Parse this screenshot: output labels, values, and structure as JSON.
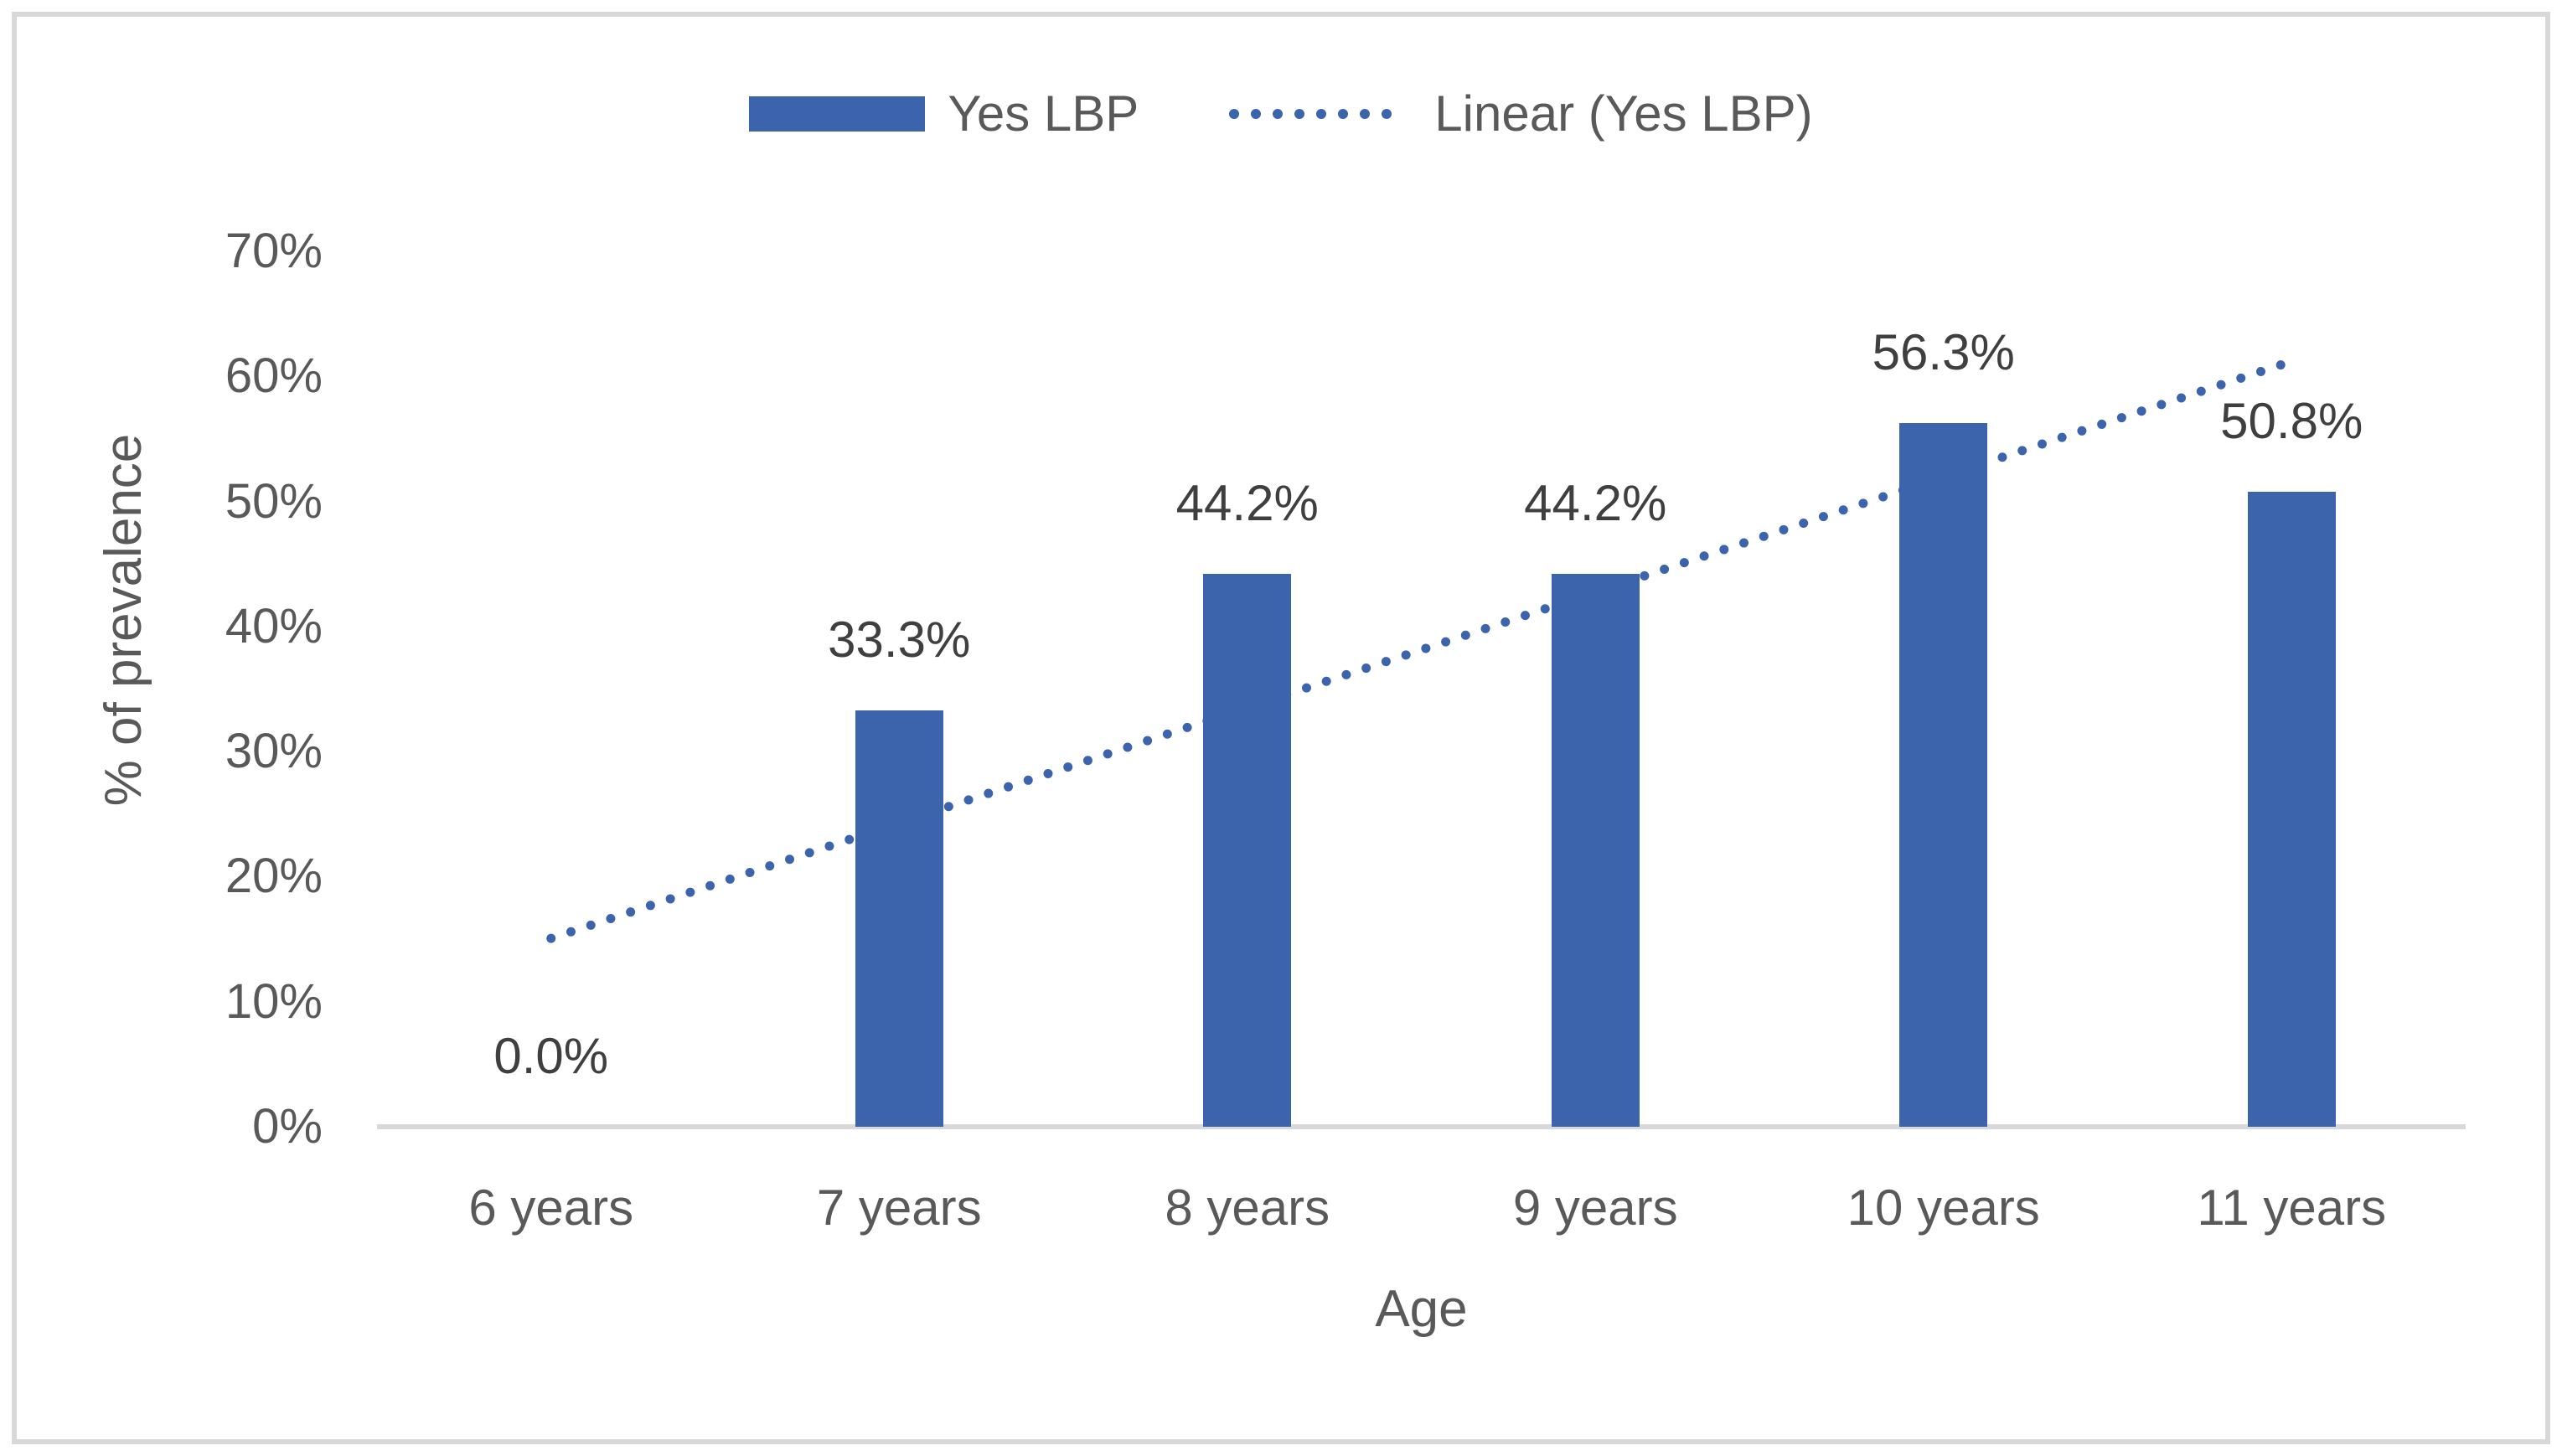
{
  "chart_data": {
    "type": "bar",
    "categories": [
      "6 years",
      "7 years",
      "8 years",
      "9 years",
      "10 years",
      "11 years"
    ],
    "series": [
      {
        "name": "Yes LBP",
        "values": [
          0,
          33.3,
          44.2,
          44.2,
          56.3,
          50.8
        ]
      }
    ],
    "data_labels": [
      "0.0%",
      "33.3%",
      "44.2%",
      "44.2%",
      "56.3%",
      "50.8%"
    ],
    "trendline": {
      "name": "Linear (Yes LBP)",
      "style": "dotted",
      "based_on": "Yes LBP"
    },
    "xlabel": "Age",
    "ylabel": "% of prevalence",
    "yticks": [
      "0%",
      "10%",
      "20%",
      "30%",
      "40%",
      "50%",
      "60%",
      "70%"
    ],
    "ylim": [
      0,
      70
    ],
    "grid": false,
    "legend_position": "top-center",
    "colors": {
      "bar": "#3C64AC",
      "trendline": "#3C64AC",
      "axis_line": "#D9D9D9",
      "tick_text": "#595959",
      "data_label_text": "#3F3F3F",
      "frame_border": "#D8D8D8",
      "background": "#FFFFFF"
    }
  },
  "legend": {
    "items": [
      {
        "label": "Yes LBP",
        "marker": "bar-swatch"
      },
      {
        "label": "Linear (Yes LBP)",
        "marker": "dotted-line-swatch"
      }
    ]
  }
}
